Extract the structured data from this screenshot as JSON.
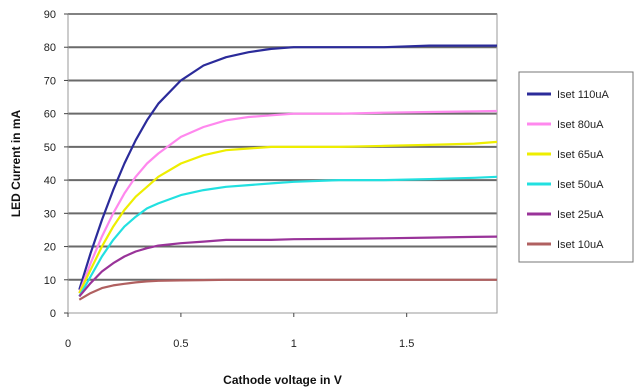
{
  "chart_data": {
    "type": "line",
    "title": "",
    "xlabel": "Cathode voltage in V",
    "ylabel": "LED Current in mA",
    "xlim": [
      0,
      1.9
    ],
    "ylim": [
      0,
      90
    ],
    "x_ticks": [
      "0",
      "0.5",
      "1",
      "1.5"
    ],
    "y_ticks": [
      "0",
      "10",
      "20",
      "30",
      "40",
      "50",
      "60",
      "70",
      "80",
      "90"
    ],
    "grid": "horizontal",
    "legend_position": "right",
    "x": [
      0.05,
      0.1,
      0.15,
      0.2,
      0.25,
      0.3,
      0.35,
      0.4,
      0.5,
      0.6,
      0.7,
      0.8,
      0.9,
      1.0,
      1.2,
      1.4,
      1.6,
      1.8,
      1.9
    ],
    "series": [
      {
        "name": "Iset 110uA",
        "color": "#2b2b9a",
        "values": [
          7,
          18,
          28,
          37,
          45,
          52,
          58,
          63,
          70,
          74.5,
          77,
          78.5,
          79.5,
          80,
          80,
          80,
          80.5,
          80.5,
          80.5
        ]
      },
      {
        "name": "Iset 80uA",
        "color": "#ff88ee",
        "values": [
          6,
          15,
          23,
          30,
          36,
          41,
          45,
          48,
          53,
          56,
          58,
          59,
          59.5,
          60,
          60,
          60.3,
          60.5,
          60.7,
          60.8
        ]
      },
      {
        "name": "Iset 65uA",
        "color": "#eeee00",
        "values": [
          6,
          13,
          20,
          26,
          31,
          35,
          38,
          41,
          45,
          47.5,
          49,
          49.5,
          50,
          50,
          50,
          50.3,
          50.6,
          51,
          51.5
        ]
      },
      {
        "name": "Iset 50uA",
        "color": "#22e0e0",
        "values": [
          5,
          11,
          17,
          22,
          26,
          29,
          31.5,
          33,
          35.5,
          37,
          38,
          38.5,
          39,
          39.5,
          40,
          40,
          40.3,
          40.7,
          41
        ]
      },
      {
        "name": "Iset 25uA",
        "color": "#993399",
        "values": [
          5,
          9,
          12.5,
          15,
          17,
          18.5,
          19.5,
          20.3,
          21,
          21.5,
          22,
          22,
          22,
          22.2,
          22.3,
          22.5,
          22.7,
          22.9,
          23
        ]
      },
      {
        "name": "Iset 10uA",
        "color": "#b06060",
        "values": [
          4,
          6,
          7.5,
          8.3,
          8.8,
          9.2,
          9.5,
          9.7,
          9.8,
          9.9,
          10,
          10,
          10,
          10,
          10,
          10,
          10,
          10,
          10
        ]
      }
    ]
  }
}
